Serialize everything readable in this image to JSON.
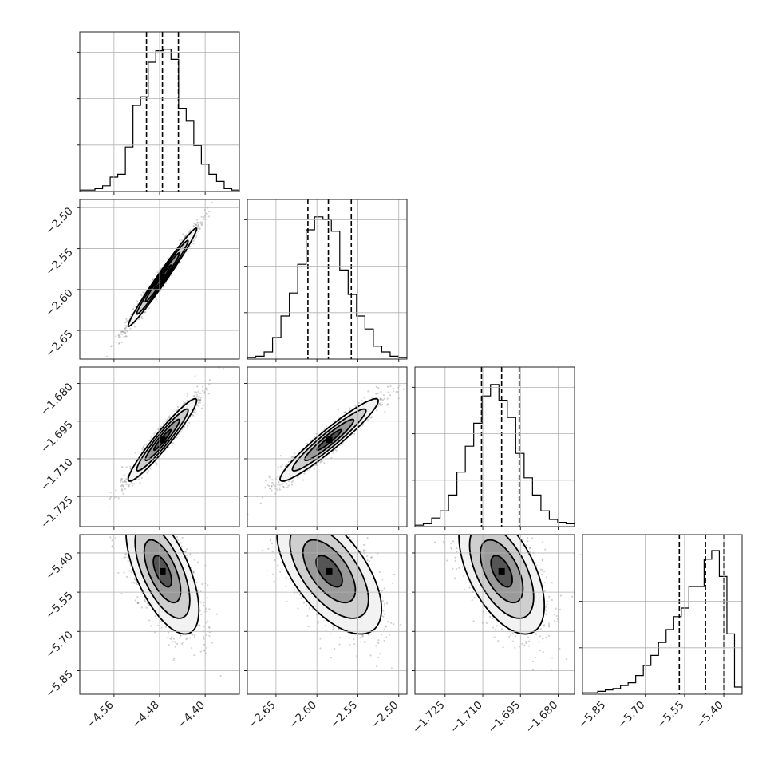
{
  "chart_data": {
    "type": "corner",
    "title": "",
    "parameters": [
      {
        "name": "",
        "range": [
          -4.62,
          -4.34
        ],
        "ticks": [
          -4.56,
          -4.48,
          -4.4
        ],
        "tick_labels": [
          "−4.56",
          "−4.48",
          "−4.40"
        ],
        "quantiles": [
          -4.503,
          -4.475,
          -4.447
        ],
        "hist_bins": [
          0.01,
          0.01,
          0.02,
          0.04,
          0.1,
          0.12,
          0.31,
          0.6,
          0.66,
          0.9,
          0.98,
          0.99,
          0.92,
          0.58,
          0.49,
          0.32,
          0.19,
          0.12,
          0.07,
          0.02,
          0.01
        ]
      },
      {
        "name": "",
        "range": [
          -2.685,
          -2.49
        ],
        "ticks": [
          -2.65,
          -2.6,
          -2.55,
          -2.5
        ],
        "tick_labels": [
          "−2.65",
          "−2.60",
          "−2.55",
          "−2.50"
        ],
        "quantiles": [
          -2.611,
          -2.586,
          -2.558
        ],
        "hist_bins": [
          0.01,
          0.02,
          0.05,
          0.15,
          0.3,
          0.46,
          0.66,
          0.9,
          0.99,
          0.97,
          0.89,
          0.62,
          0.45,
          0.3,
          0.21,
          0.09,
          0.05,
          0.02,
          0.01
        ]
      },
      {
        "name": "",
        "range": [
          -1.737,
          -1.6735
        ],
        "ticks": [
          -1.725,
          -1.71,
          -1.695,
          -1.68
        ],
        "tick_labels": [
          "−1.725",
          "−1.710",
          "−1.695",
          "−1.680"
        ],
        "quantiles": [
          -1.7105,
          -1.7025,
          -1.6955
        ],
        "hist_bins": [
          0.01,
          0.02,
          0.06,
          0.11,
          0.22,
          0.38,
          0.56,
          0.72,
          0.91,
          0.99,
          0.88,
          0.76,
          0.51,
          0.34,
          0.22,
          0.11,
          0.05,
          0.03,
          0.02
        ]
      },
      {
        "name": "",
        "range": [
          -5.94,
          -5.33
        ],
        "ticks": [
          -5.85,
          -5.7,
          -5.55,
          -5.4
        ],
        "tick_labels": [
          "−5.85",
          "−5.70",
          "−5.55",
          "−5.40"
        ],
        "quantiles": [
          -5.57,
          -5.47,
          -5.4
        ],
        "hist_bins": [
          0.01,
          0.01,
          0.02,
          0.03,
          0.04,
          0.06,
          0.08,
          0.13,
          0.2,
          0.27,
          0.36,
          0.45,
          0.54,
          0.6,
          0.75,
          0.75,
          0.94,
          1.0,
          0.82,
          0.42,
          0.05
        ]
      }
    ],
    "pairs": [
      {
        "x": 0,
        "y": 1,
        "mean": [
          -4.475,
          -2.585
        ],
        "sd": [
          0.03,
          0.03
        ],
        "rho": 0.985
      },
      {
        "x": 0,
        "y": 2,
        "mean": [
          -4.475,
          -1.7025
        ],
        "sd": [
          0.03,
          0.0082
        ],
        "rho": 0.955
      },
      {
        "x": 1,
        "y": 2,
        "mean": [
          -2.585,
          -1.7025
        ],
        "sd": [
          0.03,
          0.0082
        ],
        "rho": 0.95
      },
      {
        "x": 0,
        "y": 3,
        "mean": [
          -4.475,
          -5.47
        ],
        "sd": [
          0.032,
          0.12
        ],
        "rho": -0.62
      },
      {
        "x": 1,
        "y": 3,
        "mean": [
          -2.585,
          -5.47
        ],
        "sd": [
          0.032,
          0.12
        ],
        "rho": -0.6
      },
      {
        "x": 2,
        "y": 3,
        "mean": [
          -1.7025,
          -5.47
        ],
        "sd": [
          0.0085,
          0.12
        ],
        "rho": -0.55
      }
    ],
    "contour_levels_sigma": [
      0.5,
      1.0,
      1.5,
      2.0
    ],
    "grid": true,
    "colors": {
      "line": "#000000",
      "grid": "#b0b0b0",
      "points": "#7a7a7a"
    }
  }
}
